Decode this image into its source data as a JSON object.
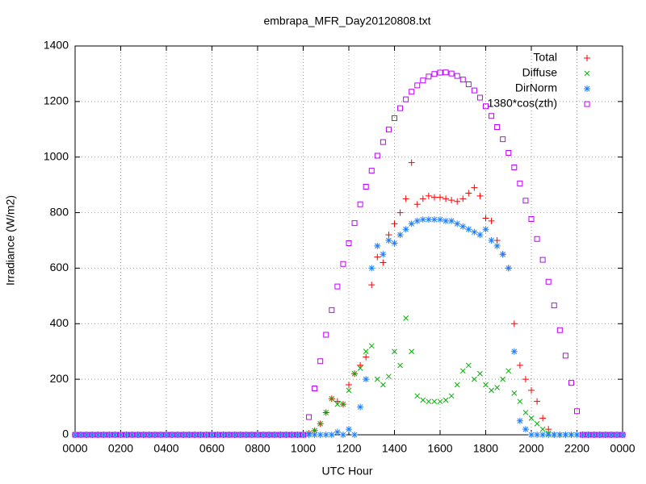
{
  "chart_data": {
    "type": "scatter",
    "title": "embrapa_MFR_Day20120808.txt",
    "xlabel": "UTC Hour",
    "ylabel": "Irradiance (W/m2)",
    "xlim": [
      0,
      24
    ],
    "ylim": [
      0,
      1400
    ],
    "xticks": [
      {
        "value": 0,
        "label": "0000"
      },
      {
        "value": 2,
        "label": "0200"
      },
      {
        "value": 4,
        "label": "0400"
      },
      {
        "value": 6,
        "label": "0600"
      },
      {
        "value": 8,
        "label": "0800"
      },
      {
        "value": 10,
        "label": "1000"
      },
      {
        "value": 12,
        "label": "1200"
      },
      {
        "value": 14,
        "label": "1400"
      },
      {
        "value": 16,
        "label": "1600"
      },
      {
        "value": 18,
        "label": "1800"
      },
      {
        "value": 20,
        "label": "2000"
      },
      {
        "value": 22,
        "label": "2200"
      },
      {
        "value": 24,
        "label": "0000"
      }
    ],
    "yticks": [
      0,
      200,
      400,
      600,
      800,
      1000,
      1200,
      1400
    ],
    "grid": true,
    "legend": "top-right",
    "x": [
      0,
      0.25,
      0.5,
      0.75,
      1,
      1.25,
      1.5,
      1.75,
      2,
      2.25,
      2.5,
      2.75,
      3,
      3.25,
      3.5,
      3.75,
      4,
      4.25,
      4.5,
      4.75,
      5,
      5.25,
      5.5,
      5.75,
      6,
      6.25,
      6.5,
      6.75,
      7,
      7.25,
      7.5,
      7.75,
      8,
      8.25,
      8.5,
      8.75,
      9,
      9.25,
      9.5,
      9.75,
      10,
      10.25,
      10.5,
      10.75,
      11,
      11.25,
      11.5,
      11.75,
      12,
      12.25,
      12.5,
      12.75,
      13,
      13.25,
      13.5,
      13.75,
      14,
      14.25,
      14.5,
      14.75,
      15,
      15.25,
      15.5,
      15.75,
      16,
      16.25,
      16.5,
      16.75,
      17,
      17.25,
      17.5,
      17.75,
      18,
      18.25,
      18.5,
      18.75,
      19,
      19.25,
      19.5,
      19.75,
      20,
      20.25,
      20.5,
      20.75,
      21,
      21.25,
      21.5,
      21.75,
      22,
      22.25,
      22.5,
      22.75,
      23,
      23.25,
      23.5,
      23.75,
      24
    ],
    "series": [
      {
        "name": "Total",
        "color": "#ff0000",
        "marker": "plus",
        "values": [
          0,
          0,
          0,
          0,
          0,
          0,
          0,
          0,
          0,
          0,
          0,
          0,
          0,
          0,
          0,
          0,
          0,
          0,
          0,
          0,
          0,
          0,
          0,
          0,
          0,
          0,
          0,
          0,
          0,
          0,
          0,
          0,
          0,
          0,
          0,
          0,
          0,
          0,
          0,
          0,
          0,
          5,
          15,
          40,
          80,
          130,
          120,
          110,
          180,
          220,
          250,
          280,
          540,
          640,
          620,
          720,
          760,
          800,
          850,
          980,
          830,
          850,
          860,
          855,
          855,
          850,
          845,
          840,
          850,
          870,
          890,
          860,
          780,
          770,
          700,
          650,
          600,
          400,
          250,
          200,
          160,
          120,
          60,
          20,
          0,
          0,
          0,
          0,
          0,
          0,
          0,
          0,
          0,
          0,
          0,
          0,
          0
        ]
      },
      {
        "name": "Diffuse",
        "color": "#00b000",
        "marker": "cross",
        "values": [
          0,
          0,
          0,
          0,
          0,
          0,
          0,
          0,
          0,
          0,
          0,
          0,
          0,
          0,
          0,
          0,
          0,
          0,
          0,
          0,
          0,
          0,
          0,
          0,
          0,
          0,
          0,
          0,
          0,
          0,
          0,
          0,
          0,
          0,
          0,
          0,
          0,
          0,
          0,
          0,
          0,
          5,
          15,
          40,
          80,
          130,
          110,
          110,
          160,
          220,
          240,
          300,
          320,
          200,
          180,
          210,
          300,
          250,
          420,
          300,
          140,
          125,
          120,
          120,
          120,
          125,
          140,
          180,
          230,
          250,
          200,
          220,
          180,
          160,
          170,
          200,
          230,
          150,
          120,
          80,
          60,
          40,
          20,
          5,
          0,
          0,
          0,
          0,
          0,
          0,
          0,
          0,
          0,
          0,
          0,
          0,
          0
        ]
      },
      {
        "name": "DirNorm",
        "color": "#1e7fff",
        "marker": "star",
        "values": [
          0,
          0,
          0,
          0,
          0,
          0,
          0,
          0,
          0,
          0,
          0,
          0,
          0,
          0,
          0,
          0,
          0,
          0,
          0,
          0,
          0,
          0,
          0,
          0,
          0,
          0,
          0,
          0,
          0,
          0,
          0,
          0,
          0,
          0,
          0,
          0,
          0,
          0,
          0,
          0,
          0,
          0,
          0,
          0,
          0,
          0,
          10,
          0,
          20,
          0,
          100,
          200,
          600,
          680,
          650,
          700,
          690,
          720,
          740,
          760,
          770,
          775,
          775,
          775,
          775,
          770,
          770,
          760,
          750,
          740,
          730,
          720,
          740,
          700,
          680,
          650,
          600,
          300,
          50,
          20,
          0,
          0,
          0,
          0,
          0,
          0,
          0,
          0,
          0,
          0,
          0,
          0,
          0,
          0,
          0,
          0,
          0
        ]
      },
      {
        "name": "1380*cos(zth)",
        "color": "#c000ff",
        "marker": "square",
        "values": [
          0,
          0,
          0,
          0,
          0,
          0,
          0,
          0,
          0,
          0,
          0,
          0,
          0,
          0,
          0,
          0,
          0,
          0,
          0,
          0,
          0,
          0,
          0,
          0,
          0,
          0,
          0,
          0,
          0,
          0,
          0,
          0,
          0,
          0,
          0,
          0,
          0,
          0,
          0,
          0,
          0,
          64,
          167,
          265,
          360,
          449,
          534,
          615,
          690,
          762,
          830,
          893,
          951,
          1005,
          1054,
          1099,
          1140,
          1176,
          1208,
          1235,
          1258,
          1276,
          1290,
          1299,
          1304,
          1305,
          1301,
          1292,
          1279,
          1262,
          1240,
          1214,
          1183,
          1148,
          1108,
          1064,
          1015,
          963,
          905,
          843,
          777,
          705,
          630,
          551,
          466,
          377,
          285,
          187,
          85,
          0,
          0,
          0,
          0,
          0,
          0,
          0,
          0
        ]
      }
    ]
  }
}
